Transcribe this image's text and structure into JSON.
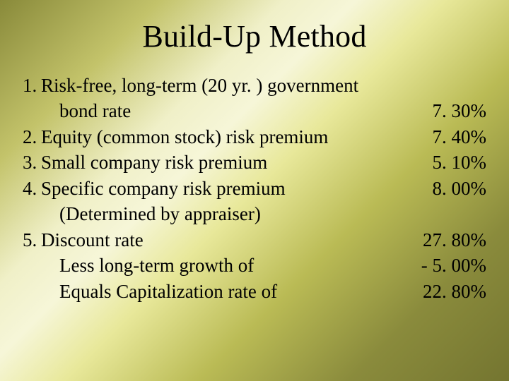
{
  "colors": {
    "text": "#000000",
    "bg_gradient_stops": [
      "#898a3a",
      "#c3c36a",
      "#f0f0c8",
      "#f6f6d8",
      "#e8e89a",
      "#babb55",
      "#8a8b3c",
      "#747530"
    ]
  },
  "typography": {
    "family": "Times New Roman",
    "title_fontsize_pt": 33,
    "body_fontsize_pt": 20
  },
  "title": "Build-Up Method",
  "rows": [
    {
      "n": "1. ",
      "label": "Risk-free, long-term (20 yr. ) government",
      "value": ""
    },
    {
      "n": "",
      "label": "bond rate",
      "value": "7. 30%",
      "indent": true
    },
    {
      "n": "2. ",
      "label": "Equity (common stock) risk premium",
      "value": "7. 40%"
    },
    {
      "n": "3. ",
      "label": "Small company risk premium",
      "value": "5. 10%"
    },
    {
      "n": "4. ",
      "label": "Specific company risk premium",
      "value": "8. 00%"
    },
    {
      "n": "",
      "label": "(Determined by appraiser)",
      "value": "",
      "indent": true
    },
    {
      "n": "5. ",
      "label": "Discount rate",
      "value": "27. 80%"
    },
    {
      "n": "",
      "label": "Less long-term growth of",
      "value": "- 5. 00%",
      "indent": true
    },
    {
      "n": "",
      "label": "Equals Capitalization rate of",
      "value": "22. 80%",
      "indent": true
    }
  ]
}
